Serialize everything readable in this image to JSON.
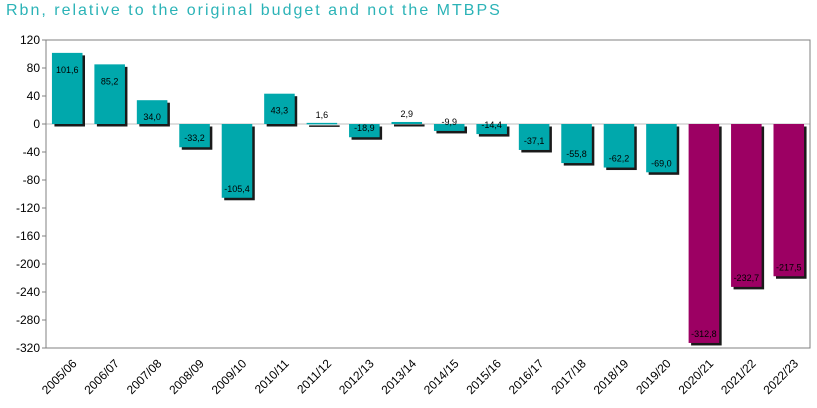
{
  "title": "Rbn, relative to the original budget and not the MTBPS",
  "colors": {
    "title": "#2bb3b7",
    "bar_teal": "#00a8ac",
    "bar_magenta": "#9c0063",
    "shadow": "#1a1a1a",
    "plot_border": "#808080"
  },
  "chart_data": {
    "type": "bar",
    "title": "Rbn, relative to the original budget and not the MTBPS",
    "xlabel": "",
    "ylabel": "",
    "ylim": [
      -320,
      120
    ],
    "yticks": [
      120,
      80,
      40,
      0,
      -40,
      -80,
      -120,
      -160,
      -200,
      -240,
      -280,
      -320
    ],
    "yticklabels": [
      "120",
      "80",
      "40",
      "0",
      "-40",
      "-80",
      "-120",
      "-160",
      "-200",
      "-240",
      "-280",
      "-320"
    ],
    "grid": false,
    "legend": "none",
    "categories": [
      "2005/06",
      "2006/07",
      "2007/08",
      "2008/09",
      "2009/10",
      "2010/11",
      "2011/12",
      "2012/13",
      "2013/14",
      "2014/15",
      "2015/16",
      "2016/17",
      "2017/18",
      "2018/19",
      "2019/20",
      "2020/21",
      "2021/22",
      "2022/23"
    ],
    "values": [
      101.6,
      85.2,
      34.0,
      -33.2,
      -105.4,
      43.3,
      1.6,
      -18.9,
      2.9,
      -9.9,
      -14.4,
      -37.1,
      -55.8,
      -62.2,
      -69.0,
      -312.8,
      -232.7,
      -217.5
    ],
    "data_labels": [
      "101,6",
      "85,2",
      "34,0",
      "-33,2",
      "-105,4",
      "43,3",
      "1,6",
      "-18,9",
      "2,9",
      "-9,9",
      "-14,4",
      "-37,1",
      "-55,8",
      "-62,2",
      "-69,0",
      "-312,8",
      "-232,7",
      "-217,5"
    ],
    "bar_colors": [
      "teal",
      "teal",
      "teal",
      "teal",
      "teal",
      "teal",
      "teal",
      "teal",
      "teal",
      "teal",
      "teal",
      "teal",
      "teal",
      "teal",
      "teal",
      "magenta",
      "magenta",
      "magenta"
    ]
  }
}
